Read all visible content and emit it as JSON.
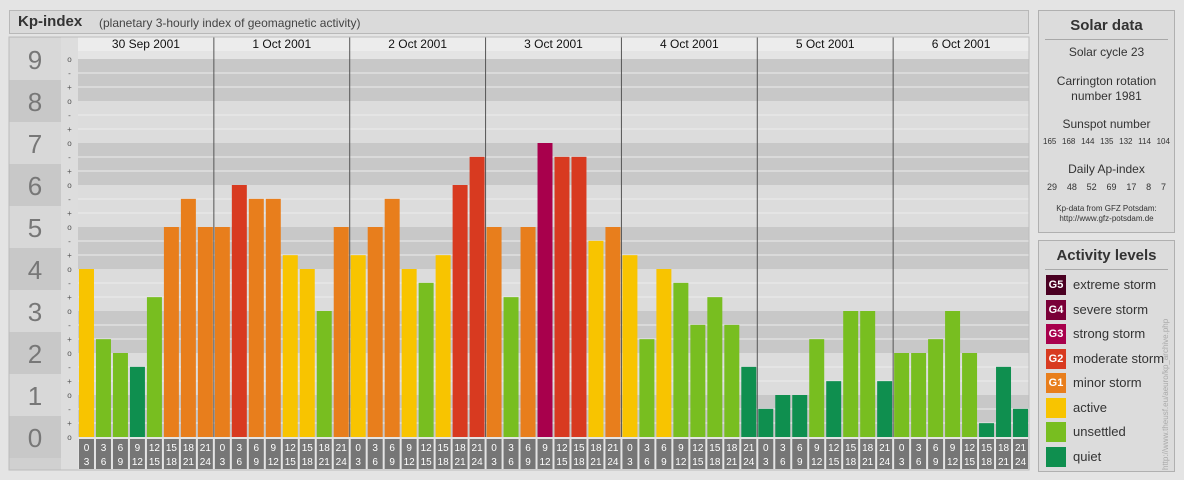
{
  "header": {
    "title": "Kp-index",
    "subtitle": "(planetary 3-hourly index of geomagnetic activity)"
  },
  "chart_data": {
    "type": "bar",
    "title": "Kp-index",
    "subtitle": "(planetary 3-hourly index of geomagnetic activity)",
    "ylim": [
      0,
      9
    ],
    "y_ticks": [
      "0",
      "1",
      "2",
      "3",
      "4",
      "5",
      "6",
      "7",
      "8",
      "9"
    ],
    "y_minor_ticks": [
      "o",
      "+",
      "-"
    ],
    "days": [
      {
        "date": "30 Sep 2001",
        "values": [
          4.0,
          2.33,
          2.0,
          1.67,
          3.33,
          5.0,
          5.67,
          5.0
        ]
      },
      {
        "date": "1 Oct 2001",
        "values": [
          5.0,
          6.0,
          5.67,
          5.67,
          4.33,
          4.0,
          3.0,
          5.0
        ]
      },
      {
        "date": "2 Oct 2001",
        "values": [
          4.33,
          5.0,
          5.67,
          4.0,
          3.67,
          4.33,
          6.0,
          6.67
        ]
      },
      {
        "date": "3 Oct 2001",
        "values": [
          5.0,
          3.33,
          5.0,
          7.0,
          6.67,
          6.67,
          4.67,
          5.0
        ]
      },
      {
        "date": "4 Oct 2001",
        "values": [
          4.33,
          2.33,
          4.0,
          3.67,
          2.67,
          3.33,
          2.67,
          1.67
        ]
      },
      {
        "date": "5 Oct 2001",
        "values": [
          0.67,
          1.0,
          1.0,
          2.33,
          1.33,
          3.0,
          3.0,
          1.33
        ]
      },
      {
        "date": "6 Oct 2001",
        "values": [
          2.0,
          2.0,
          2.33,
          3.0,
          2.0,
          0.33,
          1.67,
          0.67
        ]
      }
    ],
    "hour_labels": [
      [
        "0",
        "3"
      ],
      [
        "3",
        "6"
      ],
      [
        "6",
        "9"
      ],
      [
        "9",
        "12"
      ],
      [
        "12",
        "15"
      ],
      [
        "15",
        "18"
      ],
      [
        "18",
        "21"
      ],
      [
        "21",
        "24"
      ]
    ],
    "grid": true,
    "legend_position": "right",
    "colors": {
      "quiet": "#0f8f4f",
      "unsettled": "#78be20",
      "active": "#f8c400",
      "g1": "#e87e1c",
      "g2": "#d83a20",
      "g3": "#a8004c",
      "g4": "#7a0038",
      "g5": "#4a0022"
    }
  },
  "solar_data": {
    "title": "Solar data",
    "cycle": "Solar cycle 23",
    "carrington_line1": "Carrington rotation",
    "carrington_line2": "number 1981",
    "sunspot_label": "Sunspot number",
    "sunspot_values": [
      "165",
      "168",
      "144",
      "135",
      "132",
      "114",
      "104"
    ],
    "ap_label": "Daily Ap-index",
    "ap_values": [
      "29",
      "48",
      "52",
      "69",
      "17",
      "8",
      "7"
    ],
    "source_line1": "Kp-data from GFZ Potsdam:",
    "source_line2": "http://www.gfz-potsdam.de"
  },
  "activity_levels": {
    "title": "Activity levels",
    "items": [
      {
        "code": "G5",
        "label": "extreme storm",
        "color": "#4a0022"
      },
      {
        "code": "G4",
        "label": "severe storm",
        "color": "#7a0038"
      },
      {
        "code": "G3",
        "label": "strong storm",
        "color": "#a8004c"
      },
      {
        "code": "G2",
        "label": "moderate storm",
        "color": "#d83a20"
      },
      {
        "code": "G1",
        "label": "minor storm",
        "color": "#e87e1c"
      },
      {
        "code": "",
        "label": "active",
        "color": "#f8c400"
      },
      {
        "code": "",
        "label": "unsettled",
        "color": "#78be20"
      },
      {
        "code": "",
        "label": "quiet",
        "color": "#0f8f4f"
      }
    ]
  },
  "watermark": "http://www.theusf.eu/aeuro/kp_archive.php"
}
